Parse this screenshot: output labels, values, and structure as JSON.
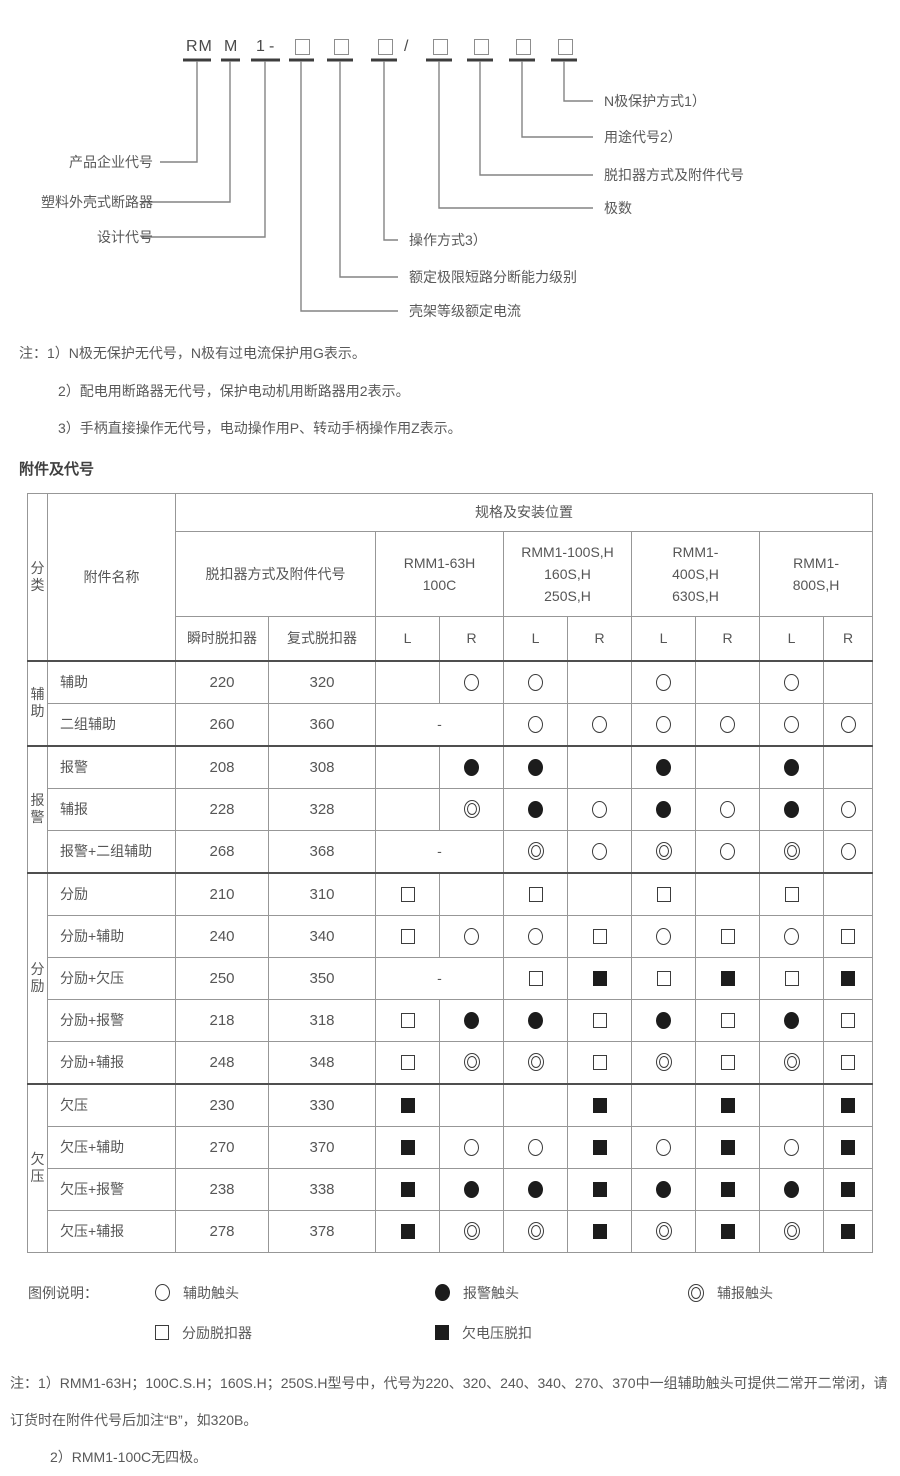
{
  "page": {
    "background": "#ffffff",
    "text_color": "#595959",
    "line_color": "#848484",
    "symbol_color": "#1c1c1c"
  },
  "diagram": {
    "tokens": [
      "RM",
      "M",
      "1",
      "-",
      "/"
    ],
    "box_count": 7,
    "callouts": [
      {
        "label": "产品企业代号"
      },
      {
        "label": "塑料外壳式断路器"
      },
      {
        "label": "设计代号"
      },
      {
        "label": "壳架等级额定电流"
      },
      {
        "label": "额定极限短路分断能力级别"
      },
      {
        "label": "操作方式3）"
      },
      {
        "label": "极数"
      },
      {
        "label": "脱扣器方式及附件代号"
      },
      {
        "label": "用途代号2）"
      },
      {
        "label": "N极保护方式1）"
      }
    ]
  },
  "notes_top": [
    "注：1）N极无保护无代号，N极有过电流保护用G表示。",
    "2）配电用断路器无代号，保护电动机用断路器用2表示。",
    "3）手柄直接操作无代号，电动操作用P、转动手柄操作用Z表示。"
  ],
  "section_title": "附件及代号",
  "table": {
    "header": {
      "category": "分类",
      "accessory": "附件名称",
      "spec_title": "规格及安装位置",
      "trip_mode": "脱扣器方式及附件代号",
      "instant": "瞬时脱扣器",
      "compound": "复式脱扣器",
      "models": [
        "RMM1-63H\n100C",
        "RMM1-100S,H\n160S,H\n250S,H",
        "RMM1-\n400S,H\n630S,H",
        "RMM1-\n800S,H"
      ],
      "lr": [
        "L",
        "R"
      ]
    },
    "sections": [
      {
        "category": "辅助",
        "rows": [
          {
            "name": "辅助",
            "instant": "220",
            "compound": "320",
            "cells": [
              "",
              "O",
              "O",
              "",
              "O",
              "",
              "O",
              ""
            ]
          },
          {
            "name": "二组辅助",
            "instant": "260",
            "compound": "360",
            "merge63": "-",
            "cells": [
              "O",
              "O",
              "O",
              "O",
              "O",
              "O"
            ]
          }
        ]
      },
      {
        "category": "报警",
        "rows": [
          {
            "name": "报警",
            "instant": "208",
            "compound": "308",
            "cells": [
              "",
              "B",
              "B",
              "",
              "B",
              "",
              "B",
              ""
            ]
          },
          {
            "name": "辅报",
            "instant": "228",
            "compound": "328",
            "cells": [
              "",
              "D",
              "B",
              "O",
              "B",
              "O",
              "B",
              "O"
            ]
          },
          {
            "name": "报警+二组辅助",
            "instant": "268",
            "compound": "368",
            "merge63": "-",
            "cells": [
              "D",
              "O",
              "D",
              "O",
              "D",
              "O"
            ]
          }
        ]
      },
      {
        "category": "分励",
        "rows": [
          {
            "name": "分励",
            "instant": "210",
            "compound": "310",
            "cells": [
              "S",
              "",
              "S",
              "",
              "S",
              "",
              "S",
              ""
            ]
          },
          {
            "name": "分励+辅助",
            "instant": "240",
            "compound": "340",
            "cells": [
              "S",
              "O",
              "O",
              "S",
              "O",
              "S",
              "O",
              "S"
            ]
          },
          {
            "name": "分励+欠压",
            "instant": "250",
            "compound": "350",
            "merge63": "-",
            "cells": [
              "S",
              "F",
              "S",
              "F",
              "S",
              "F"
            ]
          },
          {
            "name": "分励+报警",
            "instant": "218",
            "compound": "318",
            "cells": [
              "S",
              "B",
              "B",
              "S",
              "B",
              "S",
              "B",
              "S"
            ]
          },
          {
            "name": "分励+辅报",
            "instant": "248",
            "compound": "348",
            "cells": [
              "S",
              "D",
              "D",
              "S",
              "D",
              "S",
              "D",
              "S"
            ]
          }
        ]
      },
      {
        "category": "欠压",
        "rows": [
          {
            "name": "欠压",
            "instant": "230",
            "compound": "330",
            "cells": [
              "F",
              "",
              "",
              "F",
              "",
              "F",
              "",
              "F"
            ]
          },
          {
            "name": "欠压+辅助",
            "instant": "270",
            "compound": "370",
            "cells": [
              "F",
              "O",
              "O",
              "F",
              "O",
              "F",
              "O",
              "F"
            ]
          },
          {
            "name": "欠压+报警",
            "instant": "238",
            "compound": "338",
            "cells": [
              "F",
              "B",
              "B",
              "F",
              "B",
              "F",
              "B",
              "F"
            ]
          },
          {
            "name": "欠压+辅报",
            "instant": "278",
            "compound": "378",
            "cells": [
              "F",
              "D",
              "D",
              "F",
              "D",
              "F",
              "D",
              "F"
            ]
          }
        ]
      }
    ]
  },
  "legend": {
    "label": "图例说明：",
    "items": [
      {
        "symbol": "open-circle",
        "text": "辅助触头"
      },
      {
        "symbol": "filled-circle",
        "text": "报警触头"
      },
      {
        "symbol": "double-circle",
        "text": "辅报触头"
      },
      {
        "symbol": "open-square",
        "text": "分励脱扣器"
      },
      {
        "symbol": "filled-square",
        "text": "欠电压脱扣"
      }
    ]
  },
  "notes_bottom": [
    "注：1）RMM1-63H；100C.S.H；160S.H；250S.H型号中，代号为220、320、240、340、270、370中一组辅助触头可提供二常开二常闭，请订货时在附件代号后加注“B”，如320B。",
    "2）RMM1-100C无四极。"
  ]
}
